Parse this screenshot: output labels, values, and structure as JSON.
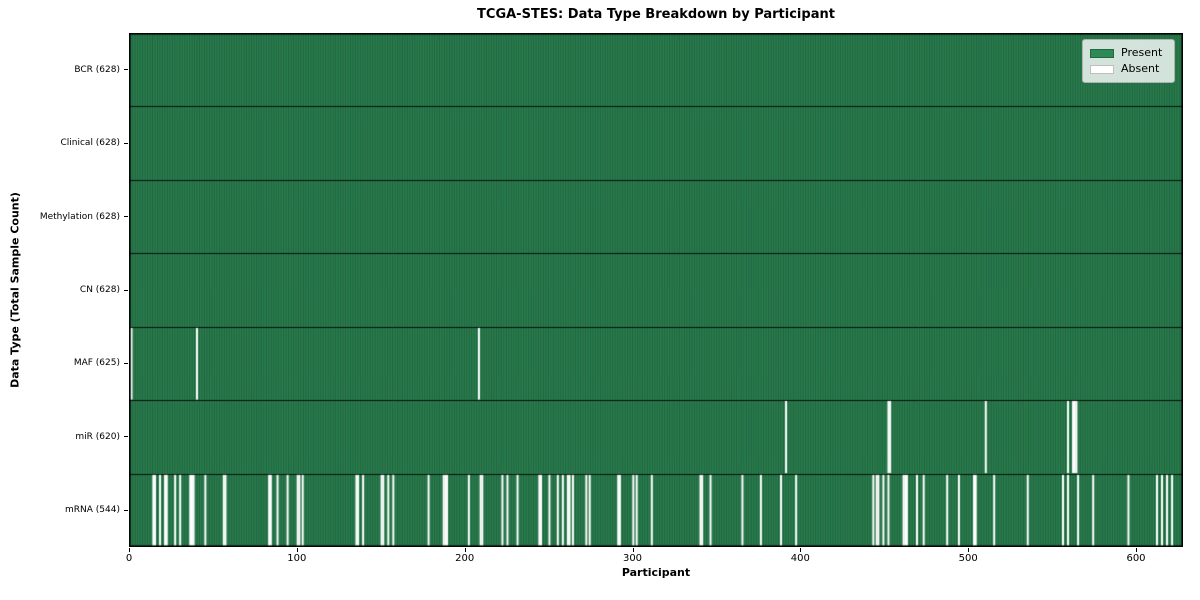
{
  "chart_data": {
    "type": "heatmap",
    "title": "TCGA-STES: Data Type Breakdown by Participant",
    "xlabel": "Participant",
    "ylabel": "Data Type (Total Sample Count)",
    "x_ticks": [
      0,
      100,
      200,
      300,
      400,
      500,
      600
    ],
    "x_range": [
      0,
      628
    ],
    "n_participants": 628,
    "grid": false,
    "legend_position": "upper right",
    "legend": [
      {
        "label": "Present",
        "color": "#2e8b57"
      },
      {
        "label": "Absent",
        "color": "#ffffff"
      }
    ],
    "present_color": "#2e8b57",
    "absent_color": "#ffffff",
    "cell_edge_color": "#1d5737",
    "row_separator_color": "#000000",
    "rows": [
      {
        "label": "BCR (628)",
        "present_count": 628,
        "absent": []
      },
      {
        "label": "Clinical (628)",
        "present_count": 628,
        "absent": []
      },
      {
        "label": "Methylation (628)",
        "present_count": 628,
        "absent": []
      },
      {
        "label": "CN (628)",
        "present_count": 628,
        "absent": []
      },
      {
        "label": "MAF (625)",
        "present_count": 625,
        "absent": [
          1,
          40,
          208
        ]
      },
      {
        "label": "miR (620)",
        "present_count": 620,
        "absent": [
          391,
          452,
          453,
          510,
          559,
          562,
          563,
          564
        ]
      },
      {
        "label": "mRNA (544)",
        "present_count": 544,
        "absent": [
          14,
          15,
          18,
          21,
          22,
          27,
          30,
          36,
          37,
          38,
          45,
          56,
          57,
          83,
          84,
          88,
          94,
          100,
          101,
          103,
          135,
          136,
          139,
          150,
          151,
          154,
          157,
          178,
          187,
          188,
          189,
          202,
          209,
          210,
          222,
          225,
          231,
          244,
          245,
          250,
          255,
          258,
          261,
          262,
          264,
          272,
          274,
          291,
          292,
          300,
          302,
          311,
          340,
          341,
          346,
          365,
          376,
          388,
          397,
          443,
          445,
          446,
          449,
          452,
          461,
          462,
          463,
          469,
          473,
          487,
          494,
          503,
          504,
          515,
          535,
          556,
          559,
          565,
          574,
          595,
          612,
          615,
          618,
          621
        ]
      }
    ]
  }
}
